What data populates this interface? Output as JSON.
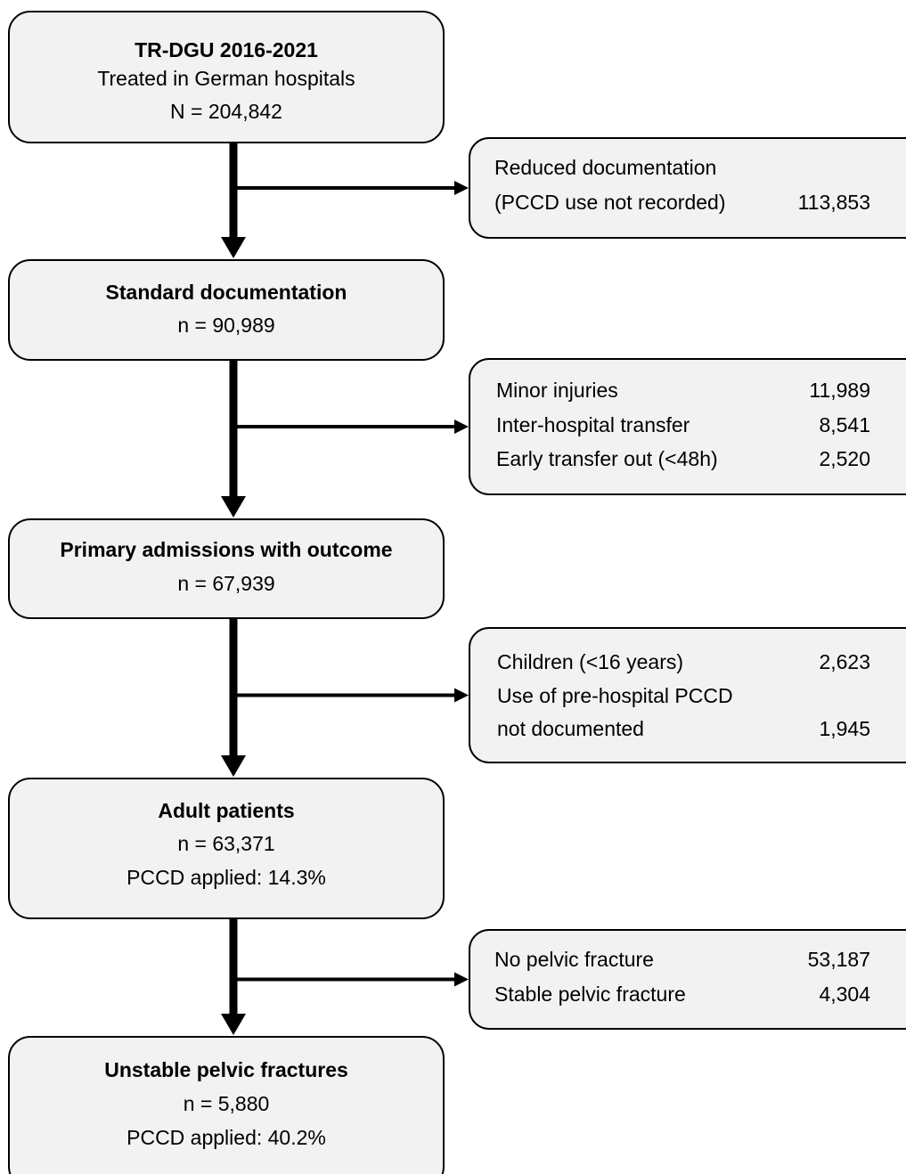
{
  "boxes": [
    {
      "lines": [
        "TR-DGU 2016-2021",
        "Treated in German hospitals",
        "N = 204,842"
      ]
    },
    {
      "lines": [
        "Standard documentation",
        "n = 90,989"
      ]
    },
    {
      "lines": [
        "Primary admissions with outcome",
        "n = 67,939"
      ]
    },
    {
      "lines": [
        "Adult patients",
        "n = 63,371",
        "PCCD applied: 14.3%"
      ]
    },
    {
      "lines": [
        "Unstable pelvic fractures",
        "n = 5,880",
        "PCCD applied: 40.2%"
      ]
    }
  ],
  "exclusions": [
    {
      "rows": [
        {
          "label": "Reduced documentation"
        },
        {
          "label": "(PCCD use not recorded)",
          "count": "113,853"
        }
      ]
    },
    {
      "rows": [
        {
          "label": "Minor injuries",
          "count": "11,989"
        },
        {
          "label": "Inter-hospital transfer",
          "count": "8,541"
        },
        {
          "label": "Early transfer out (<48h)",
          "count": "2,520"
        }
      ]
    },
    {
      "rows": [
        {
          "label": "Children (<16 years)",
          "count": "2,623"
        },
        {
          "label": "Use of pre-hospital PCCD"
        },
        {
          "label": "not documented",
          "count": "1,945"
        }
      ]
    },
    {
      "rows": [
        {
          "label": "No pelvic fracture",
          "count": "53,187"
        },
        {
          "label": "Stable pelvic fracture",
          "count": "4,304"
        }
      ]
    }
  ]
}
